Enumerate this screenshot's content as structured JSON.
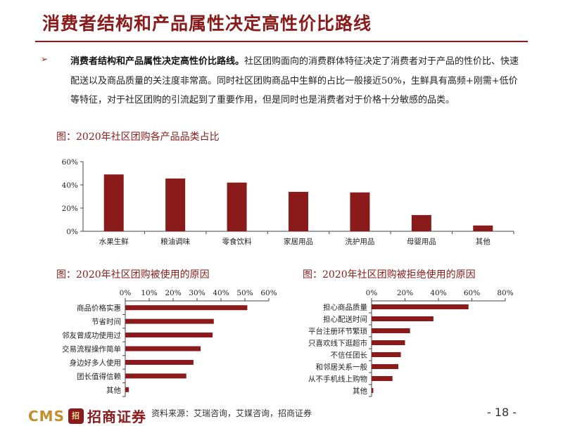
{
  "title": "消费者结构和产品属性决定高性价比路线",
  "paragraph": {
    "bullet": "➢",
    "lead": "消费者结构和产品属性决定高性价比路线。",
    "body": "社区团购面向的消费群体特征决定了消费者对于产品的性价比、快速配送以及商品质量的关注度非常高。同时社区团购商品中生鲜的占比一般接近50%，生鲜具有高频+刚需+低价等特征，对于社区团购的引流起到了重要作用，但是同时也是消费者对于价格十分敏感的品类。"
  },
  "colors": {
    "accent": "#8b1a1a",
    "bar": "#8b1a1a"
  },
  "chart_data": [
    {
      "type": "bar",
      "title": "图：2020年社区团购各产品品类占比",
      "categories": [
        "水果生鲜",
        "粮油调味",
        "零食饮料",
        "家居用品",
        "洗护用品",
        "母婴用品",
        "其他"
      ],
      "values": [
        49,
        45.5,
        42,
        34,
        33.5,
        14,
        5
      ],
      "yticks": [
        "0%",
        "20%",
        "40%",
        "60%"
      ],
      "ylim": [
        0,
        60
      ],
      "grid": false
    },
    {
      "type": "bar",
      "orientation": "horizontal",
      "title": "图：2020年社区团购被使用的原因",
      "categories": [
        "商品价格实惠",
        "节省时间",
        "邻友曾成功使用过",
        "交易流程操作简单",
        "身边好多人使用",
        "团长值得信赖",
        "其他"
      ],
      "values": [
        51,
        37,
        36.5,
        31.5,
        28.5,
        25.5,
        1.5
      ],
      "xticks": [
        "0%",
        "10%",
        "20%",
        "30%",
        "40%",
        "50%",
        "60%"
      ],
      "xlim": [
        0,
        60
      ],
      "grid": false
    },
    {
      "type": "bar",
      "orientation": "horizontal",
      "title": "图：2020年社区团购被拒绝使用的原因",
      "categories": [
        "担心商品质量",
        "担心配送时间",
        "平台注册环节繁琐",
        "只喜欢线下逛超市",
        "不信任团长",
        "和邻居关系一般",
        "从不手机线上购物",
        "其他"
      ],
      "values": [
        58,
        37,
        23,
        20,
        17.5,
        16,
        12.5,
        1
      ],
      "xticks": [
        "0%",
        "20%",
        "40%",
        "60%",
        "80%"
      ],
      "xlim": [
        0,
        80
      ],
      "grid": false
    }
  ],
  "footer": {
    "logo_text": "CMS",
    "logo_badge": "招",
    "logo_cn": "招商证券",
    "source": "资料来源：艾瑞咨询，艾媒咨询，招商证券",
    "page": "- 18 -"
  }
}
